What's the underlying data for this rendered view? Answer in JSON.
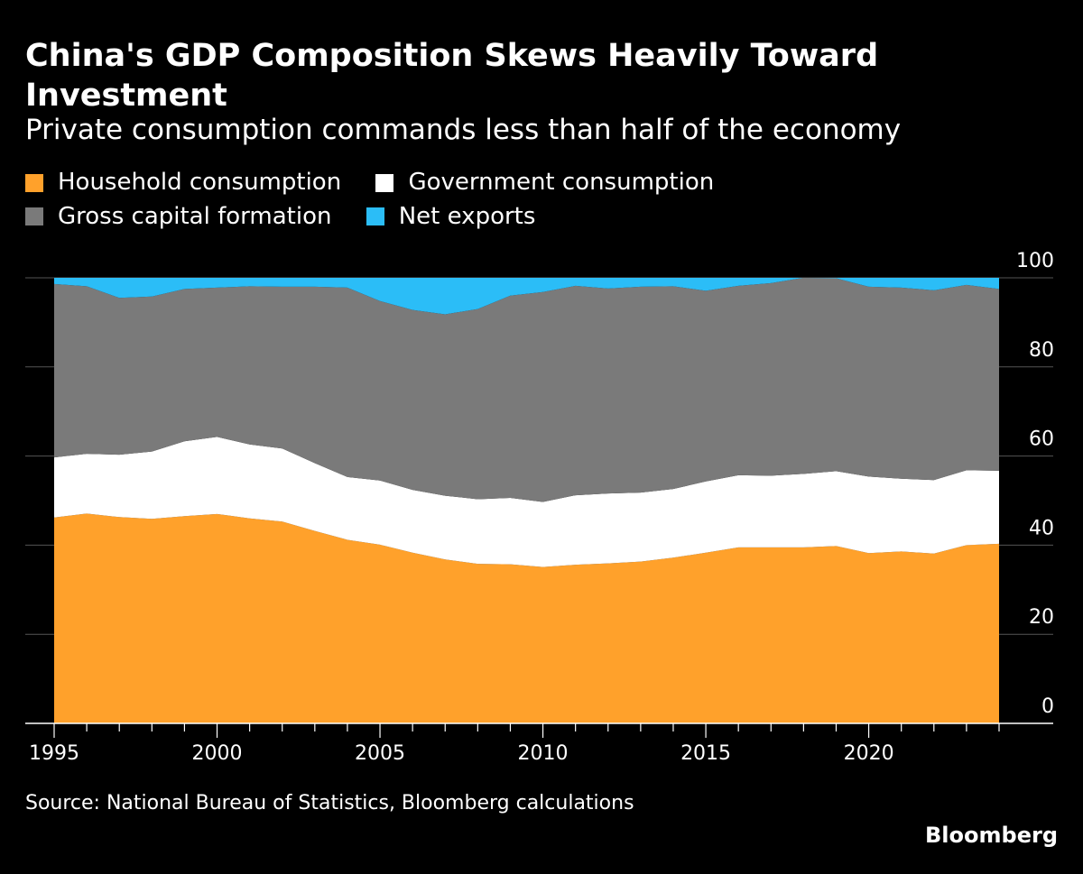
{
  "title": "China's GDP Composition Skews Heavily Toward Investment",
  "subtitle": "Private consumption commands less than half of the economy",
  "source": "Source: National Bureau of Statistics, Bloomberg calculations",
  "logo": "Bloomberg",
  "colors": {
    "household": "#FFA12B",
    "government": "#FFFFFF",
    "capital": "#7A7A7A",
    "net_exports": "#2BBDF7",
    "background": "#000000",
    "gridline": "#555555"
  },
  "chart_data": {
    "type": "area",
    "stacked": true,
    "grid": true,
    "legend_position": "top-left",
    "x": [
      1995,
      1996,
      1997,
      1998,
      1999,
      2000,
      2001,
      2002,
      2003,
      2004,
      2005,
      2006,
      2007,
      2008,
      2009,
      2010,
      2011,
      2012,
      2013,
      2014,
      2015,
      2016,
      2017,
      2018,
      2019,
      2020,
      2021,
      2022,
      2023,
      2024
    ],
    "xlim": [
      1995,
      2024
    ],
    "ylim": [
      0,
      100
    ],
    "x_ticks": [
      1995,
      2000,
      2005,
      2010,
      2015,
      2020
    ],
    "y_ticks": [
      0,
      20,
      40,
      60,
      80,
      100
    ],
    "series": [
      {
        "key": "household",
        "name": "Household consumption",
        "values": [
          46.2,
          47.1,
          46.3,
          45.9,
          46.5,
          47.0,
          46.0,
          45.3,
          43.2,
          41.2,
          40.1,
          38.3,
          36.8,
          35.8,
          35.7,
          35.1,
          35.6,
          35.9,
          36.3,
          37.2,
          38.3,
          39.5,
          39.5,
          39.5,
          39.8,
          38.2,
          38.6,
          38.1,
          40.0,
          40.3
        ]
      },
      {
        "key": "government",
        "name": "Government consumption",
        "values": [
          13.5,
          13.4,
          14.0,
          15.1,
          16.8,
          17.3,
          16.6,
          16.4,
          15.2,
          14.1,
          14.4,
          14.1,
          14.3,
          14.5,
          14.9,
          14.6,
          15.6,
          15.7,
          15.5,
          15.4,
          16.0,
          16.2,
          16.1,
          16.5,
          16.8,
          17.2,
          16.3,
          16.5,
          16.8,
          16.4
        ]
      },
      {
        "key": "capital",
        "name": "Gross capital formation",
        "values": [
          38.9,
          37.6,
          35.2,
          34.8,
          34.2,
          33.5,
          35.5,
          36.3,
          39.6,
          42.5,
          40.3,
          40.4,
          40.7,
          42.7,
          45.4,
          47.1,
          47.0,
          46.0,
          46.2,
          45.5,
          42.8,
          42.5,
          43.2,
          44.0,
          43.3,
          42.6,
          42.9,
          42.6,
          41.6,
          40.8
        ]
      },
      {
        "key": "net_exports",
        "name": "Net exports",
        "values": [
          1.4,
          1.9,
          4.5,
          4.2,
          2.5,
          2.2,
          1.9,
          2.0,
          2.0,
          2.2,
          5.2,
          7.2,
          8.2,
          7.0,
          4.0,
          3.2,
          1.8,
          2.4,
          2.0,
          1.9,
          2.9,
          1.8,
          1.2,
          0.0,
          0.1,
          2.0,
          2.2,
          2.8,
          1.6,
          2.5
        ]
      }
    ]
  }
}
